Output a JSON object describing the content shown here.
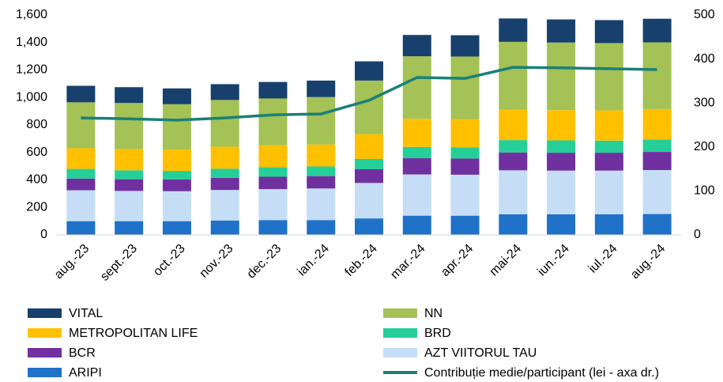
{
  "chart_data": {
    "type": "bar",
    "categories": [
      "aug.-23",
      "sept.-23",
      "oct.-23",
      "nov.-23",
      "dec.-23",
      "ian.-24",
      "feb.-24",
      "mar.-24",
      "apr.-24",
      "mai-24",
      "iun.-24",
      "iul.-24",
      "aug.-24"
    ],
    "stacked": true,
    "series": [
      {
        "name": "VITAL",
        "color": "#17406d",
        "values": [
          120,
          115,
          115,
          115,
          120,
          120,
          140,
          155,
          155,
          170,
          168,
          167,
          172
        ]
      },
      {
        "name": "NN",
        "color": "#a4c255",
        "values": [
          335,
          335,
          330,
          340,
          340,
          345,
          390,
          455,
          455,
          495,
          492,
          490,
          485
        ]
      },
      {
        "name": "METROPOLITAN LIFE",
        "color": "#ffc000",
        "values": [
          150,
          155,
          155,
          160,
          160,
          160,
          180,
          205,
          205,
          220,
          220,
          220,
          222
        ]
      },
      {
        "name": "BRD",
        "color": "#26cf98",
        "values": [
          70,
          65,
          63,
          67,
          70,
          70,
          75,
          82,
          82,
          90,
          90,
          88,
          90
        ]
      },
      {
        "name": "BCR",
        "color": "#7030a0",
        "values": [
          85,
          85,
          85,
          88,
          90,
          90,
          100,
          118,
          118,
          130,
          130,
          130,
          132
        ]
      },
      {
        "name": "AZT VIITORUL TAU",
        "color": "#c6ddf6",
        "values": [
          225,
          220,
          218,
          222,
          225,
          230,
          258,
          300,
          298,
          320,
          318,
          318,
          320
        ]
      },
      {
        "name": "ARIPI",
        "color": "#1f72c8",
        "values": [
          100,
          100,
          100,
          105,
          108,
          108,
          120,
          140,
          140,
          150,
          150,
          150,
          152
        ]
      },
      {
        "name": "Contribuție medie/participant (lei - axa dr.)",
        "color": "#1a8078",
        "type": "line",
        "axis": "y2",
        "values": [
          266,
          264,
          261,
          266,
          273,
          275,
          306,
          358,
          356,
          381,
          380,
          378,
          376
        ]
      }
    ],
    "ylim": [
      0,
      1600
    ],
    "yticks": [
      0,
      200,
      400,
      600,
      800,
      {
        "value": 1000,
        "label": "1,000"
      },
      {
        "value": 1200,
        "label": "1,200"
      },
      {
        "value": 1400,
        "label": "1,400"
      },
      {
        "value": 1600,
        "label": "1,600"
      }
    ],
    "y2lim": [
      0,
      500
    ],
    "y2ticks": [
      0,
      100,
      200,
      300,
      400,
      500
    ],
    "grid": false
  }
}
